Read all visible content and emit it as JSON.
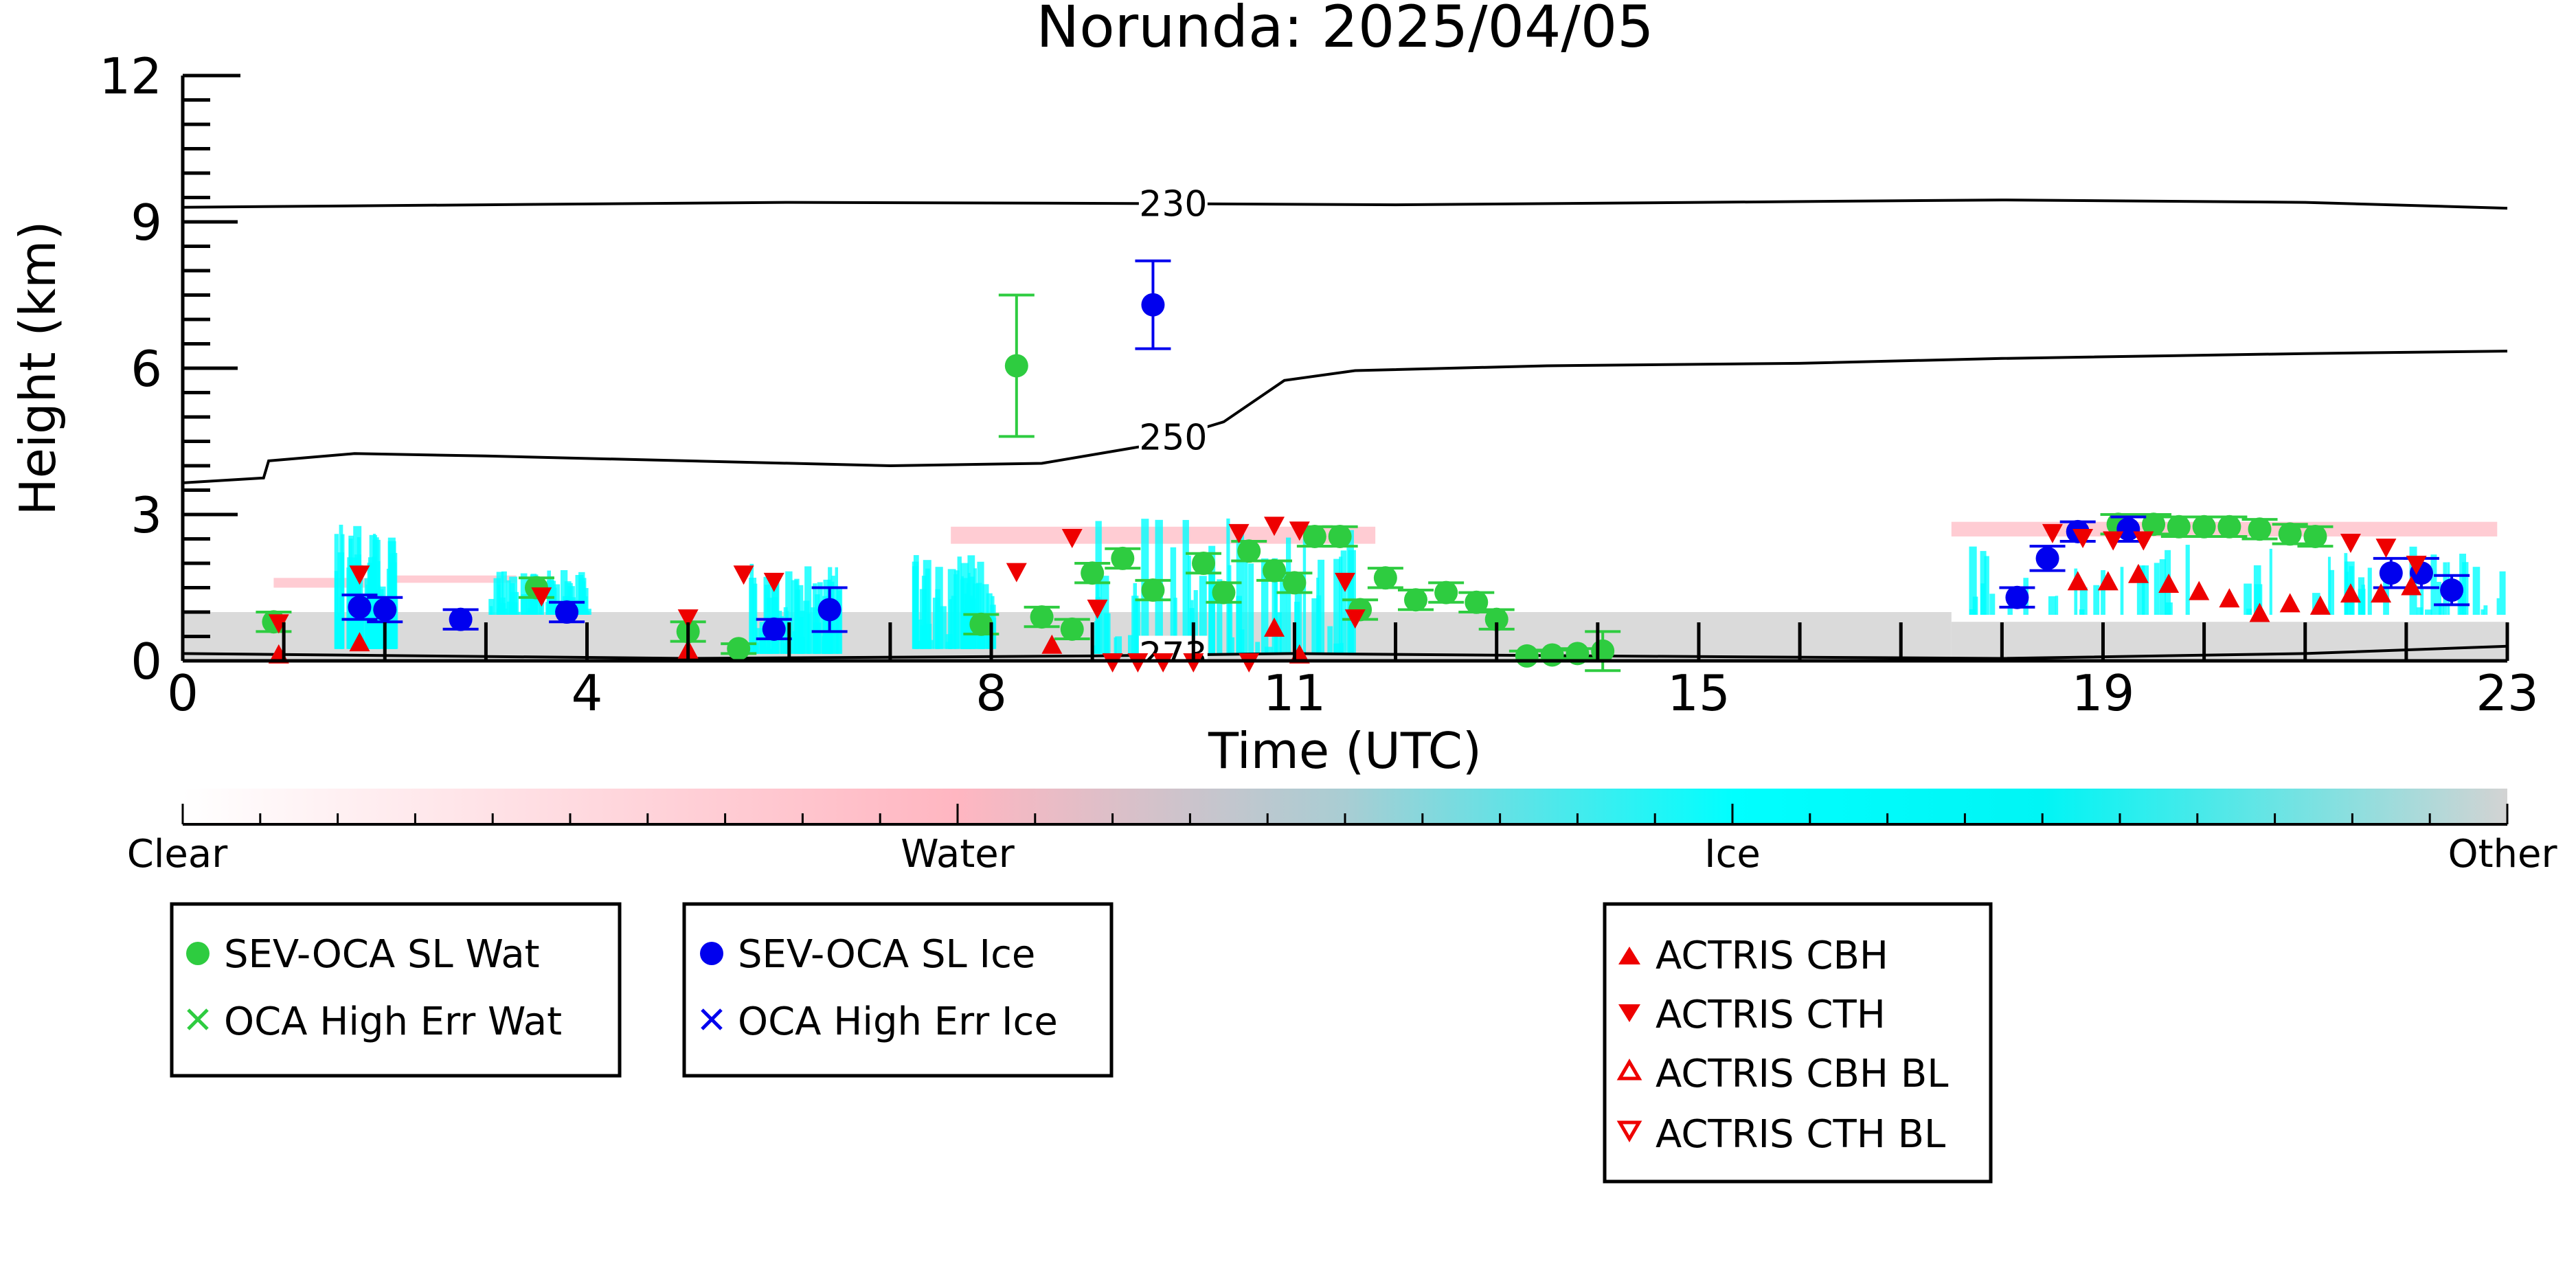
{
  "chart_data": {
    "type": "scatter",
    "title": "Norunda: 2025/04/05",
    "xlabel": "Time (UTC)",
    "ylabel": "Height (km)",
    "xlim": [
      0,
      23
    ],
    "ylim": [
      0,
      12
    ],
    "xticks": [
      0,
      4,
      8,
      11,
      15,
      19,
      23
    ],
    "yticks": [
      0,
      3,
      6,
      9,
      12
    ],
    "contours": [
      {
        "label": "230",
        "label_x": 9.8,
        "points": [
          [
            0,
            9.3
          ],
          [
            3,
            9.35
          ],
          [
            6,
            9.4
          ],
          [
            9,
            9.38
          ],
          [
            12,
            9.35
          ],
          [
            15,
            9.4
          ],
          [
            18,
            9.45
          ],
          [
            21,
            9.4
          ],
          [
            23,
            9.28
          ]
        ]
      },
      {
        "label": "250",
        "label_x": 9.8,
        "points": [
          [
            0,
            3.65
          ],
          [
            0.8,
            3.75
          ],
          [
            0.85,
            4.1
          ],
          [
            1.7,
            4.25
          ],
          [
            3,
            4.2
          ],
          [
            5,
            4.1
          ],
          [
            7,
            4.0
          ],
          [
            8.5,
            4.05
          ],
          [
            9.5,
            4.4
          ],
          [
            10.3,
            4.9
          ],
          [
            10.9,
            5.75
          ],
          [
            11.6,
            5.95
          ],
          [
            13.5,
            6.05
          ],
          [
            16,
            6.1
          ],
          [
            18,
            6.2
          ],
          [
            21,
            6.3
          ],
          [
            23,
            6.35
          ]
        ]
      },
      {
        "label": "273",
        "label_x": 9.8,
        "points": [
          [
            0,
            0.15
          ],
          [
            5,
            0.05
          ],
          [
            9,
            0.1
          ],
          [
            11,
            0.15
          ],
          [
            14,
            0.1
          ],
          [
            18,
            0.05
          ],
          [
            21,
            0.15
          ],
          [
            23,
            0.3
          ]
        ]
      }
    ],
    "colorbar": {
      "labels": [
        "Clear",
        "Water",
        "Ice",
        "Other"
      ],
      "colors": [
        "#ffffff",
        "#ffb6c1",
        "#00ffff",
        "#d3d3d3"
      ]
    },
    "series": [
      {
        "name": "SEV-OCA SL Wat",
        "color": "#2ecc40",
        "marker": "circle",
        "points": [
          [
            0.9,
            0.8,
            0.2
          ],
          [
            3.5,
            1.5,
            0.2
          ],
          [
            5.0,
            0.6,
            0.2
          ],
          [
            5.5,
            0.25,
            0.1
          ],
          [
            8.25,
            6.05,
            1.45
          ],
          [
            7.9,
            0.75,
            0.2
          ],
          [
            8.5,
            0.9,
            0.2
          ],
          [
            8.8,
            0.65,
            0.2
          ],
          [
            9.0,
            1.8,
            0.2
          ],
          [
            9.3,
            2.1,
            0.2
          ],
          [
            9.6,
            1.45,
            0.2
          ],
          [
            10.1,
            2.0,
            0.2
          ],
          [
            10.3,
            1.4,
            0.2
          ],
          [
            10.55,
            2.25,
            0.2
          ],
          [
            10.8,
            1.85,
            0.2
          ],
          [
            11.0,
            1.6,
            0.2
          ],
          [
            11.2,
            2.55,
            0.2
          ],
          [
            11.45,
            2.55,
            0.2
          ],
          [
            11.65,
            1.05,
            0.2
          ],
          [
            11.9,
            1.7,
            0.2
          ],
          [
            12.2,
            1.25,
            0.2
          ],
          [
            12.5,
            1.4,
            0.2
          ],
          [
            12.8,
            1.2,
            0.2
          ],
          [
            13.0,
            0.85,
            0.2
          ],
          [
            13.3,
            0.1,
            0.1
          ],
          [
            13.55,
            0.12,
            0.1
          ],
          [
            13.8,
            0.15,
            0.1
          ],
          [
            14.05,
            0.2,
            0.4
          ],
          [
            19.15,
            2.8,
            0.2
          ],
          [
            19.5,
            2.8,
            0.2
          ],
          [
            19.75,
            2.75,
            0.2
          ],
          [
            20.0,
            2.75,
            0.2
          ],
          [
            20.25,
            2.75,
            0.2
          ],
          [
            20.55,
            2.7,
            0.2
          ],
          [
            20.85,
            2.6,
            0.2
          ],
          [
            21.1,
            2.55,
            0.2
          ]
        ]
      },
      {
        "name": "SEV-OCA SL Ice",
        "color": "#0000ee",
        "marker": "circle",
        "points": [
          [
            1.75,
            1.1,
            0.25
          ],
          [
            2.0,
            1.05,
            0.25
          ],
          [
            2.75,
            0.85,
            0.2
          ],
          [
            3.8,
            1.0,
            0.2
          ],
          [
            5.85,
            0.65,
            0.2
          ],
          [
            6.4,
            1.05,
            0.45
          ],
          [
            9.6,
            7.3,
            0.9
          ],
          [
            18.15,
            1.3,
            0.2
          ],
          [
            18.45,
            2.1,
            0.25
          ],
          [
            18.75,
            2.65,
            0.2
          ],
          [
            19.25,
            2.7,
            0.25
          ],
          [
            21.85,
            1.8,
            0.3
          ],
          [
            22.15,
            1.8,
            0.3
          ],
          [
            22.45,
            1.45,
            0.3
          ]
        ]
      },
      {
        "name": "OCA High Err Wat",
        "color": "#2ecc40",
        "marker": "x",
        "points": []
      },
      {
        "name": "OCA High Err Ice",
        "color": "#0000ee",
        "marker": "x",
        "points": []
      },
      {
        "name": "ACTRIS CBH",
        "color": "#ee0000",
        "marker": "triangle-up",
        "points": [
          [
            0.95,
            0.1
          ],
          [
            1.75,
            0.35
          ],
          [
            5.0,
            0.2
          ],
          [
            8.6,
            0.3
          ],
          [
            10.8,
            0.65
          ],
          [
            11.05,
            0.1
          ],
          [
            18.75,
            1.6
          ],
          [
            19.05,
            1.6
          ],
          [
            19.35,
            1.75
          ],
          [
            19.65,
            1.55
          ],
          [
            19.95,
            1.4
          ],
          [
            20.25,
            1.25
          ],
          [
            20.55,
            0.95
          ],
          [
            20.85,
            1.15
          ],
          [
            21.15,
            1.1
          ],
          [
            21.45,
            1.35
          ],
          [
            21.75,
            1.35
          ],
          [
            22.05,
            1.5
          ]
        ]
      },
      {
        "name": "ACTRIS CTH",
        "color": "#ee0000",
        "marker": "triangle-down",
        "points": [
          [
            0.95,
            0.8
          ],
          [
            1.75,
            1.8
          ],
          [
            3.55,
            1.35
          ],
          [
            5.0,
            0.9
          ],
          [
            5.55,
            1.8
          ],
          [
            5.85,
            1.65
          ],
          [
            8.25,
            1.85
          ],
          [
            8.8,
            2.55
          ],
          [
            9.05,
            1.1
          ],
          [
            10.45,
            2.65
          ],
          [
            10.8,
            2.8
          ],
          [
            11.05,
            2.7
          ],
          [
            11.5,
            1.65
          ],
          [
            11.6,
            0.9
          ],
          [
            18.5,
            2.65
          ],
          [
            18.8,
            2.55
          ],
          [
            19.1,
            2.5
          ],
          [
            19.4,
            2.5
          ],
          [
            21.45,
            2.45
          ],
          [
            21.8,
            2.35
          ],
          [
            22.1,
            2.0
          ],
          [
            10.55,
            0.0
          ],
          [
            9.2,
            0.0
          ],
          [
            9.45,
            0.0
          ],
          [
            9.7,
            0.0
          ],
          [
            10.0,
            0.0
          ]
        ]
      },
      {
        "name": "ACTRIS CBH BL",
        "color": "#ee0000",
        "marker": "triangle-up-open",
        "points": []
      },
      {
        "name": "ACTRIS CTH BL",
        "color": "#ee0000",
        "marker": "triangle-down-open",
        "points": []
      }
    ],
    "legend_groups": [
      [
        "SEV-OCA SL Wat",
        "OCA High Err Wat"
      ],
      [
        "SEV-OCA SL Ice",
        "OCA High Err Ice"
      ],
      [
        "ACTRIS CBH",
        "ACTRIS CTH",
        "ACTRIS CBH BL",
        "ACTRIS CTH BL"
      ]
    ]
  }
}
